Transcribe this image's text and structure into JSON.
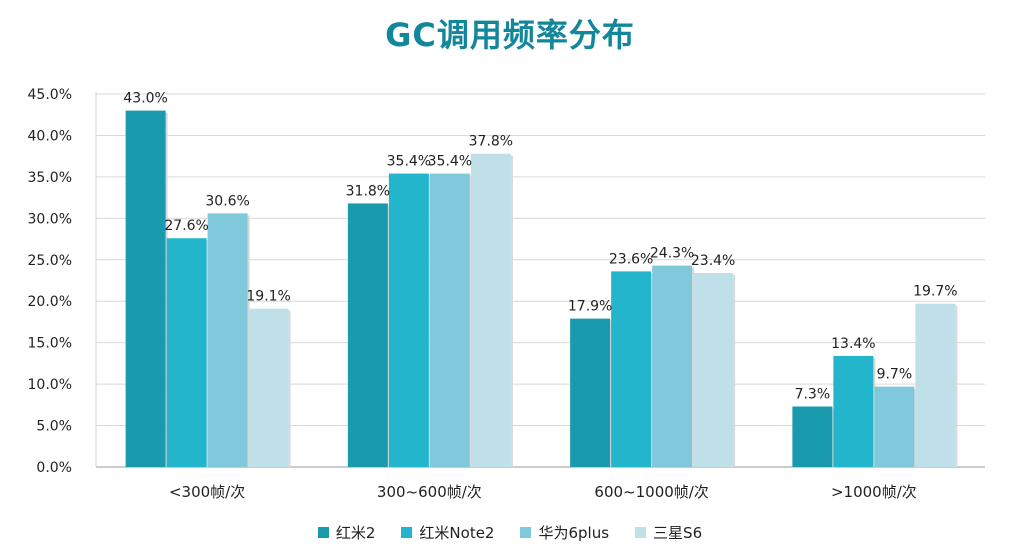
{
  "chart_data": {
    "type": "bar",
    "title": "GC调用频率分布",
    "categories": [
      "<300帧/次",
      "300~600帧/次",
      "600~1000帧/次",
      ">1000帧/次"
    ],
    "series": [
      {
        "name": "红米2",
        "color": "#1a9aaf",
        "values": [
          43.0,
          31.8,
          17.9,
          7.3
        ]
      },
      {
        "name": "红米Note2",
        "color": "#23b5cc",
        "values": [
          27.6,
          35.4,
          23.6,
          13.4
        ]
      },
      {
        "name": "华为6plus",
        "color": "#80c9dc",
        "values": [
          30.6,
          35.4,
          24.3,
          9.7
        ]
      },
      {
        "name": "三星S6",
        "color": "#bfe0e9",
        "values": [
          19.1,
          37.8,
          23.4,
          19.7
        ]
      }
    ],
    "value_labels": [
      [
        "43.0%",
        "31.8%",
        "17.9%",
        "7.3%"
      ],
      [
        "27.6%",
        "35.4%",
        "23.6%",
        "13.4%"
      ],
      [
        "30.6%",
        "35.4%",
        "24.3%",
        "9.7%"
      ],
      [
        "19.1%",
        "37.8%",
        "23.4%",
        "19.7%"
      ]
    ],
    "ylim": [
      0,
      45
    ],
    "ytick_values": [
      0,
      5,
      10,
      15,
      20,
      25,
      30,
      35,
      40,
      45
    ],
    "ytick_labels": [
      "0.0%",
      "5.0%",
      "10.0%",
      "15.0%",
      "20.0%",
      "25.0%",
      "30.0%",
      "35.0%",
      "40.0%",
      "45.0%"
    ],
    "grid": true,
    "legend_position": "bottom",
    "xlabel": "",
    "ylabel": ""
  }
}
